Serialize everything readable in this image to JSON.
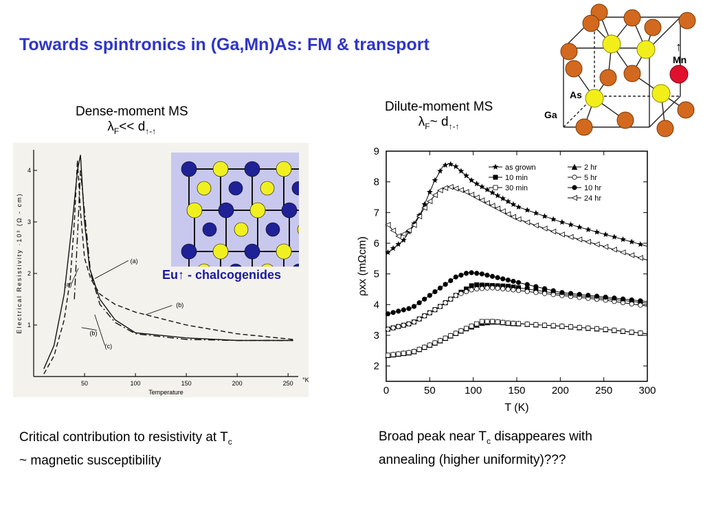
{
  "slide": {
    "title": "Towards spintronics in (Ga,Mn)As: FM & transport",
    "left_caption": {
      "line1": "Dense-moment MS",
      "lambda": "λ",
      "sub_f": "F",
      "relation": "<< d",
      "sub_arrows": "↑-↑"
    },
    "right_caption": {
      "line1": "Dilute-moment MS",
      "lambda": "λ",
      "sub_f": "F",
      "relation": "~ d",
      "sub_arrows": "↑-↑"
    },
    "eu_label": "Eu↑ - chalcogenides",
    "crystal_labels": {
      "mn": "Mn",
      "as": "As",
      "ga": "Ga",
      "arrow": "↑"
    },
    "bottom_left": {
      "part1": "Critical contribution to resistivity at T",
      "sub": "c",
      "part2": "~ magnetic susceptibility"
    },
    "bottom_right": {
      "part1": "Broad peak near T",
      "sub": "c",
      "part2": " disappeares with",
      "part3": "annealing (higher uniformity)???"
    }
  },
  "colors": {
    "title": "#2f35c8",
    "ga": "#d2691e",
    "as": "#f2ee1a",
    "mn": "#e0102c",
    "eu_atom": "#1f2196",
    "chalcogen": "#f0f020"
  },
  "chart_data": [
    {
      "type": "line",
      "xlabel": "Temperature",
      "ylabel": "Electrical Resistivity ·10³ (Ω - cm)",
      "x_unit": "°K",
      "xlim": [
        0,
        260
      ],
      "ylim": [
        0,
        4.4
      ],
      "x_ticks": [
        "50",
        "100",
        "150",
        "200",
        "250"
      ],
      "y_ticks": [
        "1",
        "2",
        "3",
        "4"
      ],
      "series": [
        {
          "name": "(a)",
          "style": "solid",
          "x": [
            10,
            20,
            30,
            38,
            43,
            46,
            50,
            55,
            65,
            80,
            100,
            150,
            200,
            255
          ],
          "y": [
            0.15,
            0.6,
            1.6,
            3.0,
            4.0,
            4.3,
            3.0,
            2.1,
            1.5,
            1.1,
            0.85,
            0.75,
            0.7,
            0.7
          ]
        },
        {
          "name": "(b)",
          "style": "dashed",
          "x": [
            10,
            20,
            30,
            36,
            40,
            43,
            46,
            50,
            56,
            65,
            80,
            100,
            150,
            200,
            255
          ],
          "y": [
            0.05,
            0.4,
            1.1,
            1.9,
            3.0,
            4.2,
            3.2,
            2.3,
            1.9,
            1.6,
            1.4,
            1.25,
            1.0,
            0.83,
            0.72
          ]
        },
        {
          "name": "(c)",
          "style": "dashdot",
          "x": [
            40,
            43,
            46,
            50,
            56,
            65,
            80,
            100,
            150,
            200,
            255
          ],
          "y": [
            1.5,
            2.7,
            4.0,
            3.2,
            2.0,
            1.4,
            1.05,
            0.83,
            0.72,
            0.7,
            0.7
          ]
        }
      ],
      "annotations": [
        "(a)",
        "(a)",
        "(b)",
        "(b)",
        "(c)"
      ]
    },
    {
      "type": "line",
      "xlabel": "T (K)",
      "ylabel": "ρxx (mΩcm)",
      "xlim": [
        0,
        300
      ],
      "ylim": [
        1.5,
        9
      ],
      "x_ticks": [
        "0",
        "50",
        "100",
        "150",
        "200",
        "250",
        "300"
      ],
      "y_ticks": [
        "2",
        "3",
        "4",
        "5",
        "6",
        "7",
        "8",
        "9"
      ],
      "grid": false,
      "legend_position": "top-right",
      "series": [
        {
          "name": "as grown",
          "marker": "star",
          "x": [
            2,
            20,
            40,
            55,
            65,
            72,
            80,
            100,
            150,
            200,
            250,
            300
          ],
          "y": [
            5.7,
            6.1,
            7.0,
            8.0,
            8.5,
            8.6,
            8.5,
            8.0,
            7.2,
            6.7,
            6.3,
            5.9
          ]
        },
        {
          "name": "2 hr",
          "marker": "triangle-up",
          "x": [
            2,
            30,
            60,
            90,
            110,
            125,
            140,
            200,
            250,
            300
          ],
          "y": [
            2.35,
            2.45,
            2.8,
            3.2,
            3.4,
            3.45,
            3.4,
            3.3,
            3.2,
            3.05
          ]
        },
        {
          "name": "10 min",
          "marker": "square-filled",
          "x": [
            2,
            30,
            60,
            80,
            100,
            140,
            200,
            250,
            300
          ],
          "y": [
            3.2,
            3.4,
            3.9,
            4.3,
            4.65,
            4.6,
            4.35,
            4.2,
            4.05
          ]
        },
        {
          "name": "5 hr",
          "marker": "circle-open",
          "x": [
            2,
            30,
            60,
            80,
            100,
            120,
            140,
            200,
            250,
            300
          ],
          "y": [
            3.2,
            3.4,
            3.9,
            4.3,
            4.5,
            4.55,
            4.5,
            4.3,
            4.15,
            3.95
          ]
        },
        {
          "name": "30 min",
          "marker": "square-open",
          "x": [
            2,
            30,
            60,
            90,
            110,
            125,
            140,
            200,
            250,
            300
          ],
          "y": [
            2.35,
            2.45,
            2.8,
            3.2,
            3.45,
            3.45,
            3.4,
            3.3,
            3.2,
            3.05
          ]
        },
        {
          "name": "10 hr",
          "marker": "circle-filled",
          "x": [
            2,
            30,
            60,
            80,
            95,
            110,
            140,
            200,
            250,
            300
          ],
          "y": [
            3.7,
            3.9,
            4.5,
            4.9,
            5.05,
            5.0,
            4.8,
            4.4,
            4.25,
            4.1
          ]
        },
        {
          "name": "24 hr",
          "marker": "triangle-left",
          "x": [
            2,
            15,
            30,
            45,
            60,
            72,
            90,
            150,
            200,
            250,
            300
          ],
          "y": [
            6.6,
            6.2,
            6.5,
            7.2,
            7.7,
            7.85,
            7.7,
            6.8,
            6.3,
            5.9,
            5.45
          ]
        }
      ]
    }
  ]
}
